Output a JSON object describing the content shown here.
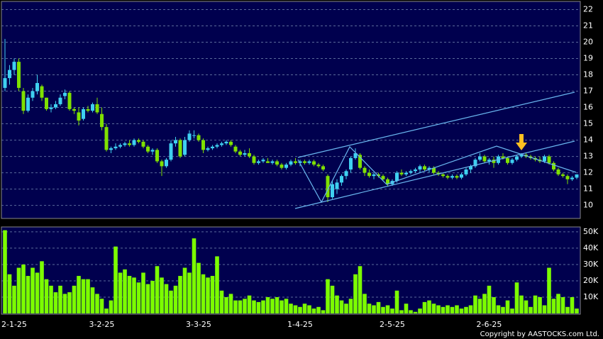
{
  "chart_data": {
    "type": "candlestick",
    "up_color": "#3fd0f0",
    "down_color": "#7fe000",
    "ylim": [
      9.2,
      22.5
    ],
    "yticks": [
      10,
      11,
      12,
      13,
      14,
      15,
      16,
      17,
      18,
      19,
      20,
      21,
      22
    ],
    "grid": true,
    "categories": [
      "2-1-25",
      null,
      null,
      null,
      null,
      null,
      null,
      null,
      null,
      null,
      null,
      null,
      null,
      null,
      null,
      null,
      null,
      null,
      null,
      "3-2-25",
      null,
      null,
      null,
      null,
      null,
      null,
      null,
      null,
      null,
      null,
      null,
      null,
      null,
      null,
      null,
      null,
      null,
      null,
      null,
      null,
      "3-3-25",
      null,
      null,
      null,
      null,
      null,
      null,
      null,
      null,
      null,
      null,
      null,
      null,
      null,
      null,
      null,
      null,
      null,
      null,
      null,
      null,
      null,
      "1-4-25",
      null,
      null,
      null,
      null,
      null,
      null,
      null,
      null,
      null,
      null,
      null,
      null,
      null,
      null,
      null,
      null,
      null,
      null,
      null,
      "2-5-25",
      null,
      null,
      null,
      null,
      null,
      null,
      null,
      null,
      null,
      null,
      null,
      null,
      null,
      null,
      null,
      null,
      null,
      null,
      null,
      null,
      "2-6-25",
      null,
      null,
      null,
      null,
      null,
      null,
      null,
      null,
      null,
      null,
      null,
      null,
      null,
      null,
      null,
      null,
      null,
      null,
      null,
      null,
      null
    ],
    "open": [
      17.2,
      17.8,
      18.3,
      18.8,
      17.0,
      15.8,
      16.6,
      17.0,
      17.3,
      16.6,
      15.9,
      16.0,
      16.2,
      16.7,
      16.9,
      15.9,
      15.7,
      15.3,
      15.9,
      15.8,
      16.2,
      15.6,
      14.8,
      13.4,
      13.5,
      13.6,
      13.7,
      13.8,
      13.7,
      14.0,
      13.9,
      13.6,
      13.3,
      13.4,
      12.7,
      12.4,
      12.8,
      13.8,
      14.0,
      13.1,
      14.0,
      14.3,
      14.3,
      14.0,
      13.4,
      13.5,
      13.6,
      13.7,
      13.8,
      13.9,
      13.6,
      13.3,
      13.1,
      13.2,
      13.0,
      12.6,
      12.7,
      12.7,
      12.6,
      12.7,
      12.5,
      12.3,
      12.5,
      12.7,
      12.6,
      12.7,
      12.6,
      12.7,
      12.5,
      12.4,
      11.8,
      10.5,
      11.0,
      11.4,
      11.8,
      12.2,
      12.9,
      13.1,
      12.3,
      12.0,
      11.8,
      11.9,
      11.8,
      11.6,
      11.3,
      11.5,
      12.0,
      11.9,
      12.0,
      12.1,
      12.2,
      12.4,
      12.2,
      12.3,
      12.0,
      11.9,
      11.8,
      11.7,
      11.8,
      11.7,
      11.9,
      12.2,
      12.4,
      12.8,
      13.0,
      12.7,
      12.8,
      12.6,
      13.0,
      12.9,
      12.6,
      12.8,
      13.0,
      13.1,
      13.0,
      12.9,
      12.8,
      12.7,
      13.0,
      12.6,
      12.2,
      11.9,
      11.8,
      11.6,
      11.7
    ],
    "high": [
      20.2,
      18.6,
      19.0,
      19.0,
      17.2,
      16.8,
      17.2,
      18.0,
      17.4,
      16.6,
      16.2,
      16.4,
      16.8,
      17.1,
      17.0,
      16.0,
      16.0,
      16.0,
      16.1,
      16.3,
      16.6,
      16.0,
      15.0,
      13.6,
      13.8,
      13.8,
      13.9,
      14.0,
      14.1,
      14.1,
      14.0,
      13.7,
      13.5,
      13.5,
      12.8,
      12.9,
      14.0,
      14.2,
      14.1,
      14.2,
      14.6,
      14.6,
      14.4,
      14.1,
      13.6,
      13.7,
      13.8,
      13.9,
      14.0,
      14.0,
      13.7,
      13.4,
      13.4,
      13.5,
      13.1,
      12.8,
      12.9,
      12.9,
      12.8,
      12.8,
      12.6,
      12.6,
      12.8,
      12.9,
      12.8,
      12.8,
      12.8,
      12.8,
      12.6,
      12.5,
      11.9,
      11.5,
      11.6,
      11.9,
      12.2,
      13.0,
      13.5,
      13.2,
      12.4,
      12.2,
      12.0,
      12.0,
      11.9,
      11.7,
      11.6,
      12.1,
      12.2,
      12.1,
      12.2,
      12.3,
      12.5,
      12.5,
      12.4,
      12.4,
      12.1,
      12.0,
      11.9,
      11.9,
      11.9,
      12.0,
      12.3,
      12.5,
      12.9,
      13.2,
      13.1,
      12.9,
      13.0,
      13.1,
      13.2,
      13.0,
      12.9,
      13.1,
      13.2,
      13.2,
      13.1,
      13.0,
      13.0,
      13.1,
      13.1,
      12.7,
      12.3,
      12.0,
      11.9,
      11.8,
      11.9
    ],
    "low": [
      17.0,
      17.4,
      18.0,
      17.0,
      15.6,
      15.7,
      16.4,
      16.8,
      16.4,
      15.8,
      15.7,
      15.9,
      16.1,
      16.5,
      15.8,
      15.6,
      14.9,
      15.2,
      15.7,
      15.7,
      15.6,
      14.6,
      13.3,
      13.2,
      13.4,
      13.5,
      13.6,
      13.6,
      13.6,
      13.8,
      13.5,
      13.2,
      13.1,
      12.6,
      11.8,
      12.3,
      12.7,
      13.6,
      12.9,
      13.0,
      13.9,
      14.1,
      13.9,
      13.2,
      13.3,
      13.4,
      13.5,
      13.6,
      13.7,
      13.6,
      13.2,
      13.0,
      13.0,
      12.9,
      12.5,
      12.5,
      12.6,
      12.6,
      12.5,
      12.4,
      12.2,
      12.2,
      12.4,
      12.5,
      12.4,
      12.5,
      12.5,
      12.4,
      12.3,
      12.1,
      10.2,
      10.4,
      10.7,
      11.2,
      11.6,
      12.0,
      12.8,
      12.2,
      11.8,
      11.7,
      11.6,
      11.7,
      11.5,
      11.2,
      11.2,
      11.4,
      11.8,
      11.8,
      11.9,
      12.0,
      12.0,
      12.1,
      12.0,
      11.9,
      11.8,
      11.7,
      11.6,
      11.6,
      11.6,
      11.6,
      11.8,
      12.0,
      12.3,
      12.7,
      12.6,
      12.5,
      12.3,
      12.5,
      12.8,
      12.5,
      12.5,
      12.7,
      12.9,
      12.9,
      12.8,
      12.7,
      12.6,
      12.6,
      12.5,
      12.1,
      11.8,
      11.7,
      11.3,
      11.5,
      11.6
    ],
    "close": [
      17.8,
      18.3,
      18.8,
      17.2,
      15.8,
      16.6,
      17.0,
      17.5,
      16.6,
      15.9,
      16.0,
      16.2,
      16.6,
      16.9,
      15.9,
      15.8,
      15.2,
      15.9,
      15.8,
      16.2,
      15.7,
      14.8,
      13.4,
      13.5,
      13.6,
      13.7,
      13.8,
      13.7,
      14.0,
      13.9,
      13.6,
      13.3,
      13.4,
      12.7,
      12.4,
      12.8,
      13.8,
      14.0,
      13.0,
      14.0,
      14.4,
      14.3,
      14.0,
      13.4,
      13.5,
      13.6,
      13.7,
      13.8,
      13.9,
      13.7,
      13.3,
      13.1,
      13.2,
      13.0,
      12.6,
      12.7,
      12.8,
      12.6,
      12.7,
      12.5,
      12.3,
      12.5,
      12.7,
      12.6,
      12.7,
      12.6,
      12.7,
      12.5,
      12.4,
      12.2,
      10.5,
      11.3,
      11.4,
      11.8,
      12.1,
      12.9,
      13.2,
      12.3,
      12.0,
      11.8,
      11.9,
      11.8,
      11.6,
      11.3,
      11.5,
      12.0,
      11.9,
      12.0,
      12.1,
      12.2,
      12.4,
      12.2,
      12.3,
      12.0,
      11.9,
      11.8,
      11.7,
      11.8,
      11.7,
      11.9,
      12.2,
      12.4,
      12.8,
      13.0,
      12.7,
      12.8,
      12.6,
      13.0,
      12.9,
      12.6,
      12.8,
      13.0,
      13.1,
      13.0,
      12.9,
      12.8,
      12.7,
      13.0,
      12.6,
      12.2,
      11.9,
      11.8,
      11.6,
      11.7,
      11.9
    ],
    "volume": {
      "color": "#7cfc00",
      "ylim": [
        0,
        53000
      ],
      "yticks": [
        {
          "value": 10000,
          "label": "10K"
        },
        {
          "value": 20000,
          "label": "20K"
        },
        {
          "value": 30000,
          "label": "30K"
        },
        {
          "value": 40000,
          "label": "40K"
        },
        {
          "value": 50000,
          "label": "50K"
        }
      ],
      "values": [
        51000,
        24000,
        17000,
        28000,
        30000,
        23000,
        28000,
        25000,
        32000,
        21000,
        17000,
        13000,
        17000,
        12000,
        13000,
        17000,
        23000,
        21000,
        21000,
        16000,
        12000,
        9000,
        3000,
        8000,
        41000,
        25000,
        27000,
        23000,
        22000,
        19000,
        25000,
        18000,
        20000,
        29000,
        22000,
        18000,
        14000,
        17000,
        23000,
        28000,
        25000,
        46000,
        31000,
        24000,
        22000,
        23000,
        35000,
        14000,
        10000,
        12000,
        8000,
        8000,
        9000,
        11000,
        8000,
        7000,
        8000,
        10000,
        9000,
        10000,
        8000,
        9000,
        6000,
        5000,
        4000,
        6000,
        5000,
        3000,
        4000,
        2000,
        21000,
        17000,
        11000,
        8000,
        6000,
        9000,
        24000,
        29000,
        12000,
        6000,
        5000,
        7000,
        4000,
        5000,
        3000,
        14000,
        2000,
        6000,
        2000,
        1000,
        3000,
        7000,
        8000,
        6000,
        5000,
        4000,
        5000,
        4000,
        5000,
        3000,
        4000,
        5000,
        11000,
        9000,
        12000,
        17000,
        10000,
        5000,
        4000,
        8000,
        3000,
        19000,
        11000,
        8000,
        4000,
        11000,
        10000,
        5000,
        28000,
        9000,
        12000,
        10000,
        4000,
        10000,
        3000
      ]
    },
    "footer": "Copyright by AASTOCKS.com Ltd."
  }
}
